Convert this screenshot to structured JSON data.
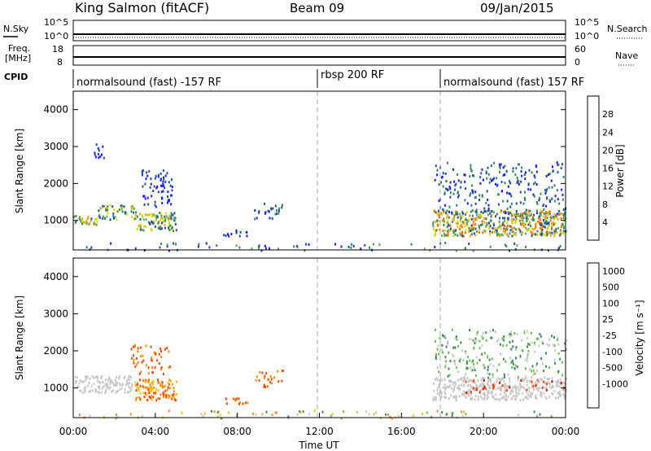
{
  "header": {
    "station": "King Salmon (fitACF)",
    "beam": "Beam 09",
    "date": "09/Jan/2015"
  },
  "strips": {
    "nsky_label": "N.Sky",
    "nsearch_label": "N.Search",
    "noise_ticks": [
      "10^5",
      "10^0"
    ],
    "freq_label_1": "Freq.",
    "freq_label_2": "[MHz]",
    "freq_ticks": [
      "18",
      "8"
    ],
    "nave_label": "Nave",
    "nave_ticks": [
      "60",
      "0"
    ],
    "cpid_label": "CPID"
  },
  "cpid_segments": [
    {
      "label": "normalsound (fast) -157 RF",
      "start_hour": 0
    },
    {
      "label": "rbsp 200 RF",
      "start_hour": 12
    },
    {
      "label": "normalsound (fast) 157 RF",
      "start_hour": 18
    }
  ],
  "colors": {
    "power": [
      "#1a1aff",
      "#1f4fa8",
      "#2e8b57",
      "#5ca85c",
      "#d7d700",
      "#ffa500",
      "#ff6a00",
      "#ff0000"
    ],
    "velocity": [
      "#1a3fd6",
      "#2f6fb0",
      "#3a8d5a",
      "#6cc04a",
      "#c8c8c8",
      "#ffbf00",
      "#ff8c00",
      "#ff4500",
      "#e00000"
    ],
    "ground_scatter": "#c8c8c8"
  },
  "chart_data": [
    {
      "type": "heatmap",
      "panel": "power",
      "ylabel": "Slant Range [km]",
      "colorbar_label": "Power [dB]",
      "colorbar_ticks": [
        "4",
        "8",
        "12",
        "16",
        "20",
        "24",
        "28"
      ],
      "xlim": [
        0,
        24
      ],
      "ylim": [
        200,
        4500
      ],
      "yticks": [
        "1000",
        "2000",
        "3000",
        "4000"
      ],
      "scatter_regions": [
        {
          "t": [
            0.0,
            1.2
          ],
          "r": [
            900,
            1150
          ],
          "level": [
            1,
            5
          ],
          "density": 0.85
        },
        {
          "t": [
            1.2,
            3.0
          ],
          "r": [
            1050,
            1450
          ],
          "level": [
            1,
            4
          ],
          "density": 0.6
        },
        {
          "t": [
            3.0,
            5.0
          ],
          "r": [
            750,
            1250
          ],
          "level": [
            1,
            5
          ],
          "density": 0.8
        },
        {
          "t": [
            3.3,
            4.8
          ],
          "r": [
            1400,
            2400
          ],
          "level": [
            0,
            1
          ],
          "density": 0.35
        },
        {
          "t": [
            1.0,
            1.5
          ],
          "r": [
            2700,
            3100
          ],
          "level": [
            0,
            1
          ],
          "density": 0.5
        },
        {
          "t": [
            7.3,
            8.5
          ],
          "r": [
            600,
            760
          ],
          "level": [
            0,
            1
          ],
          "density": 0.5
        },
        {
          "t": [
            8.8,
            10.2
          ],
          "r": [
            1050,
            1500
          ],
          "level": [
            0,
            2
          ],
          "density": 0.3
        },
        {
          "t": [
            17.5,
            24.0
          ],
          "r": [
            600,
            1300
          ],
          "level": [
            1,
            6
          ],
          "density": 0.85
        },
        {
          "t": [
            17.6,
            24.0
          ],
          "r": [
            1200,
            2600
          ],
          "level": [
            0,
            2
          ],
          "density": 0.22
        },
        {
          "t": [
            0.0,
            24.0
          ],
          "r": [
            210,
            420
          ],
          "level": [
            0,
            3
          ],
          "density": 0.12
        }
      ]
    },
    {
      "type": "heatmap",
      "panel": "velocity",
      "ylabel": "Slant Range [km]",
      "colorbar_label": "Velocity [m s⁻¹]",
      "colorbar_ticks": [
        "1000",
        "500",
        "100",
        "25",
        "-25",
        "-100",
        "-500",
        "-1000"
      ],
      "xlim": [
        0,
        24
      ],
      "ylim": [
        200,
        4500
      ],
      "xlabel": "Time UT",
      "xticks": [
        "00:00",
        "04:00",
        "08:00",
        "12:00",
        "16:00",
        "20:00",
        "00:00"
      ],
      "yticks": [
        "1000",
        "2000",
        "3000",
        "4000"
      ],
      "scatter_regions": [
        {
          "t": [
            0.0,
            3.0
          ],
          "r": [
            900,
            1350
          ],
          "level": [
            4,
            4
          ],
          "density": 0.75
        },
        {
          "t": [
            3.0,
            5.0
          ],
          "r": [
            700,
            1250
          ],
          "level": [
            5,
            7
          ],
          "density": 0.8
        },
        {
          "t": [
            2.8,
            4.8
          ],
          "r": [
            1400,
            2200
          ],
          "level": [
            6,
            7
          ],
          "density": 0.25
        },
        {
          "t": [
            7.3,
            8.5
          ],
          "r": [
            600,
            760
          ],
          "level": [
            6,
            7
          ],
          "density": 0.5
        },
        {
          "t": [
            8.8,
            10.2
          ],
          "r": [
            1050,
            1500
          ],
          "level": [
            6,
            7
          ],
          "density": 0.3
        },
        {
          "t": [
            17.5,
            24.0
          ],
          "r": [
            700,
            1300
          ],
          "level": [
            4,
            4
          ],
          "density": 0.8
        },
        {
          "t": [
            17.6,
            24.0
          ],
          "r": [
            1300,
            2600
          ],
          "level": [
            2,
            4
          ],
          "density": 0.22
        },
        {
          "t": [
            19.0,
            24.0
          ],
          "r": [
            900,
            1250
          ],
          "level": [
            7,
            8
          ],
          "density": 0.15
        },
        {
          "t": [
            0.0,
            24.0
          ],
          "r": [
            210,
            420
          ],
          "level": [
            2,
            6
          ],
          "density": 0.12
        }
      ]
    }
  ]
}
